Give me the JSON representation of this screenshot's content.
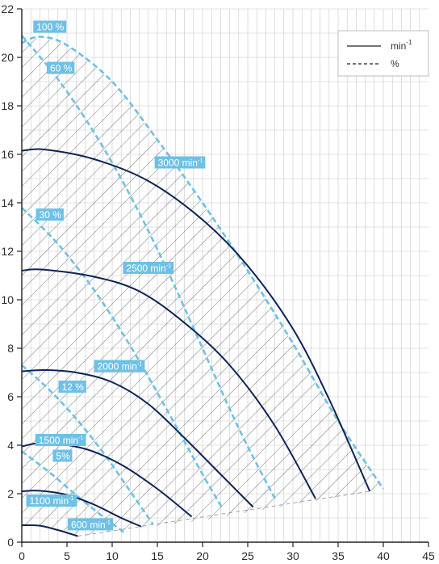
{
  "chart_data": {
    "type": "line",
    "title": "",
    "xlabel": "",
    "ylabel": "",
    "xlim": [
      0,
      45
    ],
    "ylim": [
      0,
      22
    ],
    "x_ticks": [
      0,
      5,
      10,
      15,
      20,
      25,
      30,
      35,
      40,
      45
    ],
    "y_ticks": [
      0,
      2,
      4,
      6,
      8,
      10,
      12,
      14,
      16,
      18,
      20,
      22
    ],
    "grid": true,
    "legend_position": "top-right",
    "legend": [
      {
        "label": "min",
        "superscript": "-1",
        "style": "solid"
      },
      {
        "label": "%",
        "superscript": "",
        "style": "dashed"
      }
    ],
    "colors": {
      "speed_curve": "#0d2257",
      "efficiency_curve": "#6ec1e4",
      "label_bg": "#6ec1e4",
      "grid": "#c8c8c8",
      "hatch": "#3a3a3a"
    },
    "speed_curves": [
      {
        "label": "3000 min-1",
        "points": [
          [
            0,
            16.15
          ],
          [
            2.5,
            16.2
          ],
          [
            8,
            15.8
          ],
          [
            14,
            14.9
          ],
          [
            20,
            13.3
          ],
          [
            25,
            11.4
          ],
          [
            30,
            8.8
          ],
          [
            34,
            5.9
          ],
          [
            38.5,
            2.1
          ]
        ]
      },
      {
        "label": "2500 min-1",
        "points": [
          [
            0,
            11.2
          ],
          [
            2.2,
            11.25
          ],
          [
            8,
            10.95
          ],
          [
            13,
            10.35
          ],
          [
            18,
            9.05
          ],
          [
            23,
            7.3
          ],
          [
            28,
            4.8
          ],
          [
            32.5,
            1.8
          ]
        ]
      },
      {
        "label": "2000 min-1",
        "points": [
          [
            0,
            7.05
          ],
          [
            2.5,
            7.1
          ],
          [
            6,
            7.0
          ],
          [
            10,
            6.6
          ],
          [
            14,
            5.7
          ],
          [
            18,
            4.3
          ],
          [
            22,
            2.8
          ],
          [
            25.6,
            1.45
          ]
        ]
      },
      {
        "label": "1500 min-1",
        "points": [
          [
            0,
            3.95
          ],
          [
            2.5,
            4.1
          ],
          [
            7,
            3.85
          ],
          [
            11,
            3.2
          ],
          [
            15,
            2.2
          ],
          [
            18.8,
            1.05
          ]
        ]
      },
      {
        "label": "1100 min-1",
        "points": [
          [
            0,
            2.1
          ],
          [
            2,
            2.12
          ],
          [
            5,
            1.95
          ],
          [
            8,
            1.55
          ],
          [
            11,
            1.0
          ],
          [
            13.2,
            0.65
          ]
        ]
      },
      {
        "label": "600 min-1",
        "points": [
          [
            0,
            0.7
          ],
          [
            2,
            0.68
          ],
          [
            4,
            0.5
          ],
          [
            6.2,
            0.25
          ]
        ]
      }
    ],
    "efficiency_curves": [
      {
        "label": "100 %",
        "points": [
          [
            0,
            20.6
          ],
          [
            2,
            20.85
          ],
          [
            5,
            20.5
          ],
          [
            10,
            19.0
          ],
          [
            15,
            16.6
          ],
          [
            20,
            14.0
          ],
          [
            25,
            11.2
          ],
          [
            30,
            8.2
          ],
          [
            35,
            5.0
          ],
          [
            40,
            2.2
          ]
        ]
      },
      {
        "label": "60 %",
        "points": [
          [
            0,
            20.9
          ],
          [
            4,
            19.1
          ],
          [
            8,
            16.9
          ],
          [
            12,
            14.3
          ],
          [
            16,
            11.3
          ],
          [
            20,
            8.0
          ],
          [
            24,
            4.7
          ],
          [
            28,
            1.8
          ]
        ]
      },
      {
        "label": "30 %",
        "points": [
          [
            0,
            13.8
          ],
          [
            4,
            12.3
          ],
          [
            8,
            10.4
          ],
          [
            12,
            8.1
          ],
          [
            16,
            5.5
          ],
          [
            20,
            2.8
          ],
          [
            22.2,
            1.4
          ]
        ]
      },
      {
        "label": "12 %",
        "points": [
          [
            0,
            7.3
          ],
          [
            3,
            6.3
          ],
          [
            6,
            5.1
          ],
          [
            9,
            3.7
          ],
          [
            12,
            2.1
          ],
          [
            14.5,
            0.75
          ]
        ]
      },
      {
        "label": "5%",
        "points": [
          [
            0,
            3.75
          ],
          [
            3,
            2.9
          ],
          [
            6,
            1.95
          ],
          [
            9,
            1.05
          ],
          [
            11.5,
            0.35
          ]
        ]
      }
    ],
    "operating_region": [
      [
        38.5,
        2.1
      ],
      [
        40,
        2.2
      ],
      [
        35,
        5.0
      ],
      [
        30,
        8.2
      ],
      [
        25,
        11.2
      ],
      [
        20,
        14.0
      ],
      [
        15,
        16.6
      ],
      [
        10,
        19.0
      ],
      [
        5,
        20.5
      ],
      [
        2,
        20.85
      ],
      [
        0,
        20.6
      ],
      [
        0,
        0.7
      ],
      [
        2,
        0.68
      ],
      [
        4,
        0.5
      ],
      [
        6.2,
        0.25
      ],
      [
        20,
        0.9
      ]
    ]
  }
}
